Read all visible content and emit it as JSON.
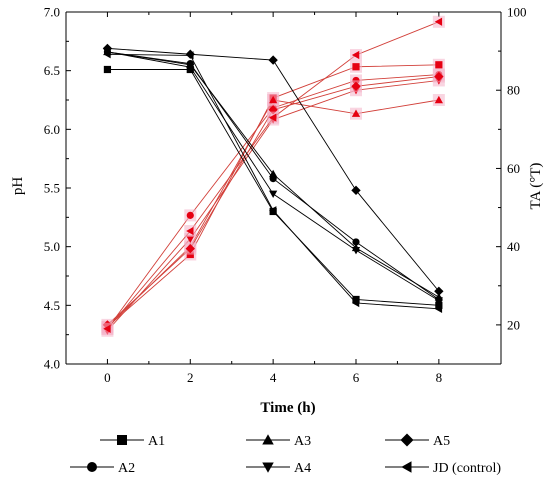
{
  "chart_data": {
    "type": "line",
    "xlabel": "Time (h)",
    "ylabel_left": "pH",
    "ylabel_right": "TA (°T)",
    "x_ticks": [
      "0",
      "2",
      "4",
      "6",
      "8"
    ],
    "xlim": [
      -1,
      9.5
    ],
    "ylim_left": [
      4.0,
      7.0
    ],
    "ylim_right": [
      10,
      100
    ],
    "y_ticks_left": [
      "4.0",
      "4.5",
      "5.0",
      "5.5",
      "6.0",
      "6.5",
      "7.0"
    ],
    "y_ticks_right": [
      "20",
      "40",
      "60",
      "80",
      "100"
    ],
    "x": [
      0,
      2,
      4,
      6,
      8
    ],
    "ph_series_color": "#000000",
    "ta_series_color": "#d2403a",
    "ta_marker_color": "#e60012",
    "legend_position": "bottom",
    "legend": [
      {
        "label": "A1",
        "marker": "square"
      },
      {
        "label": "A3",
        "marker": "triangle-up"
      },
      {
        "label": "A5",
        "marker": "diamond"
      },
      {
        "label": "A2",
        "marker": "circle"
      },
      {
        "label": "A4",
        "marker": "triangle-down"
      },
      {
        "label": "JD (control)",
        "marker": "triangle-left"
      }
    ],
    "ph_series": [
      {
        "name": "A1",
        "marker": "square",
        "values": [
          6.51,
          6.51,
          5.3,
          4.55,
          4.5
        ]
      },
      {
        "name": "A2",
        "marker": "circle",
        "values": [
          6.66,
          6.56,
          5.58,
          5.04,
          4.55
        ]
      },
      {
        "name": "A3",
        "marker": "triangle-up",
        "values": [
          6.66,
          6.55,
          5.62,
          4.99,
          4.57
        ]
      },
      {
        "name": "A4",
        "marker": "triangle-down",
        "values": [
          6.66,
          6.53,
          5.45,
          4.97,
          4.54
        ]
      },
      {
        "name": "A5",
        "marker": "diamond",
        "values": [
          6.69,
          6.64,
          6.59,
          5.48,
          4.62
        ]
      },
      {
        "name": "JD (control)",
        "marker": "triangle-left",
        "values": [
          6.64,
          6.63,
          5.31,
          4.52,
          4.47
        ]
      }
    ],
    "ta_series": [
      {
        "name": "A1",
        "marker": "square",
        "values": [
          19.5,
          38.0,
          78.0,
          86.0,
          86.5
        ]
      },
      {
        "name": "A2",
        "marker": "circle",
        "values": [
          19.0,
          48.0,
          75.5,
          82.5,
          84.0
        ]
      },
      {
        "name": "A3",
        "marker": "triangle-up",
        "values": [
          19.5,
          40.0,
          77.5,
          74.0,
          77.5
        ]
      },
      {
        "name": "A4",
        "marker": "triangle-down",
        "values": [
          18.5,
          42.0,
          72.5,
          80.0,
          82.5
        ]
      },
      {
        "name": "A5",
        "marker": "diamond",
        "values": [
          20.0,
          39.5,
          75.0,
          81.0,
          83.5
        ]
      },
      {
        "name": "JD (control)",
        "marker": "triangle-left",
        "values": [
          19.0,
          44.0,
          73.0,
          89.0,
          97.5
        ]
      }
    ]
  }
}
